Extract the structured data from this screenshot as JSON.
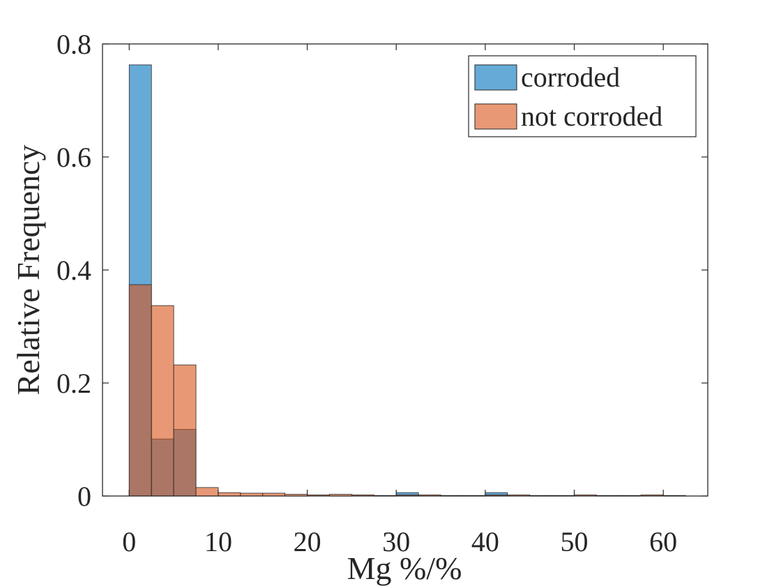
{
  "chart_data": {
    "type": "bar",
    "subtype": "overlaid-histogram",
    "xlabel": "Mg %/%",
    "ylabel": "Relative Frequency",
    "xlim": [
      -3,
      65
    ],
    "ylim": [
      0,
      0.8
    ],
    "xticks": [
      0,
      10,
      20,
      30,
      40,
      50,
      60
    ],
    "yticks": [
      0,
      0.2,
      0.4,
      0.6,
      0.8
    ],
    "xtick_labels": [
      "0",
      "10",
      "20",
      "30",
      "40",
      "50",
      "60"
    ],
    "ytick_labels": [
      "0",
      "0.2",
      "0.4",
      "0.6",
      "0.8"
    ],
    "bin_edges": [
      0,
      2.5,
      5,
      7.5,
      10,
      12.5,
      15,
      17.5,
      20,
      22.5,
      25,
      27.5,
      30,
      32.5,
      35,
      37.5,
      40,
      42.5,
      45,
      47.5,
      50,
      52.5,
      55,
      57.5,
      60,
      62.5
    ],
    "legend_position": "top-right",
    "grid": false,
    "series": [
      {
        "name": "corroded",
        "color": "#0072BD",
        "values": [
          0.763,
          0.101,
          0.118,
          0,
          0,
          0,
          0,
          0,
          0,
          0,
          0,
          0,
          0.006,
          0,
          0,
          0,
          0.006,
          0,
          0,
          0,
          0,
          0,
          0,
          0,
          0
        ]
      },
      {
        "name": "not corroded",
        "color": "#D95319",
        "values": [
          0.374,
          0.337,
          0.232,
          0.015,
          0.006,
          0.005,
          0.005,
          0.003,
          0.002,
          0.003,
          0.002,
          0.001,
          0.002,
          0.002,
          0.001,
          0.001,
          0.002,
          0.002,
          0.001,
          0.001,
          0.002,
          0.001,
          0.001,
          0.002,
          0.001
        ]
      }
    ]
  }
}
